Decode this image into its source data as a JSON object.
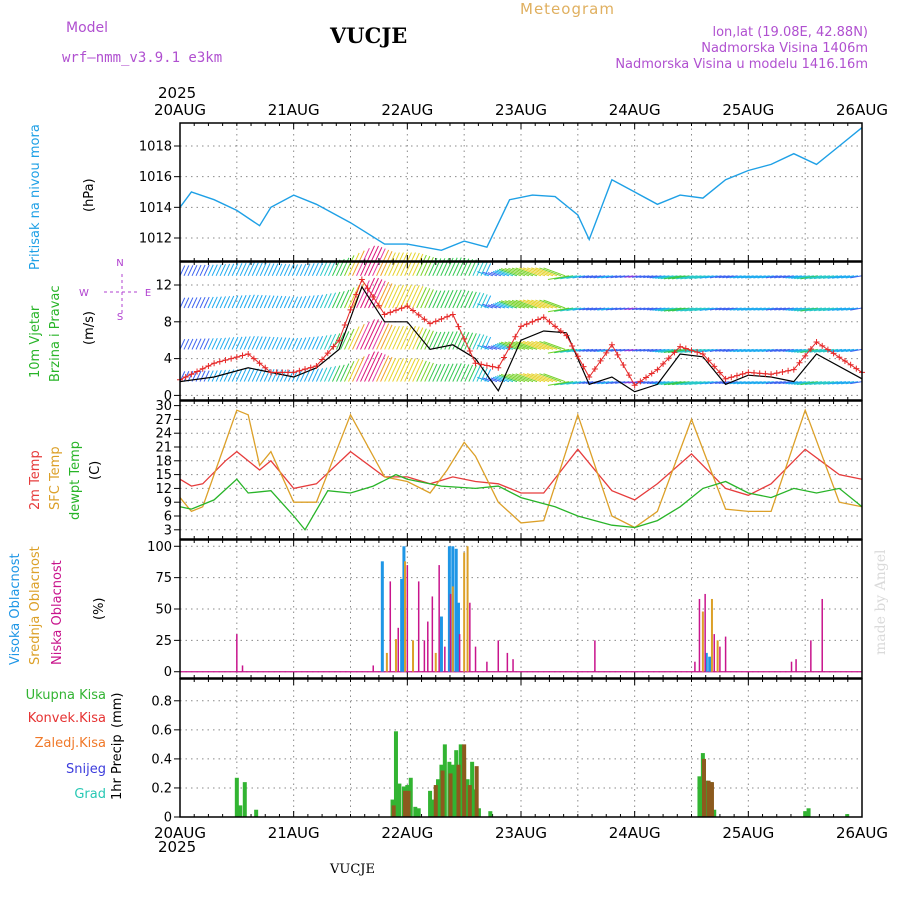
{
  "header": {
    "model_label": "Model",
    "model_name": "wrf—nmm_v3.9.1  e3km",
    "station_title": "VUCJE",
    "meteogram_label": "Meteogram",
    "lonlat": "lon,lat (19.08E, 42.88N)",
    "altitude": "Nadmorska Visina 1406m",
    "model_altitude": "Nadmorska Visina u modelu 1416.16m",
    "year_top": "2025",
    "year_bottom": "2025",
    "footer_station": "VUCJE",
    "watermark": "made by Angel"
  },
  "colors": {
    "pressure": "#1ea0e6",
    "wind_speed": "#000000",
    "gust": "#e62828",
    "t2m": "#e63c3c",
    "tsfc": "#dca028",
    "dewpt": "#28b428",
    "cloud_high": "#1e96e6",
    "cloud_mid": "#dca028",
    "cloud_low": "#c8148c",
    "precip_total": "#32b432",
    "precip_conv": "#e63232",
    "precip_frozen": "#f07828",
    "snow": "#3c3cdc",
    "hail": "#28c8b4"
  },
  "chart_data": [
    {
      "type": "line",
      "title": "Pritisak na nivou mora",
      "ylabel": "(hPa)",
      "ylim": [
        1010.5,
        1019.5
      ],
      "yticks": [
        "1012",
        "1014",
        "1016",
        "1018"
      ],
      "ytick_values": [
        1012,
        1014,
        1016,
        1018
      ],
      "x_days": [
        0,
        0.1,
        0.3,
        0.5,
        0.7,
        0.8,
        1.0,
        1.2,
        1.5,
        1.8,
        2.0,
        2.3,
        2.5,
        2.7,
        2.9,
        3.1,
        3.3,
        3.5,
        3.6,
        3.8,
        4.0,
        4.2,
        4.4,
        4.6,
        4.8,
        5.0,
        5.2,
        5.4,
        5.6,
        5.8,
        6.0
      ],
      "values": [
        1014,
        1015,
        1014.5,
        1013.8,
        1012.8,
        1014,
        1014.8,
        1014.2,
        1013,
        1011.6,
        1011.6,
        1011.2,
        1011.8,
        1011.4,
        1014.5,
        1014.8,
        1014.7,
        1013.5,
        1011.9,
        1015.8,
        1015,
        1014.2,
        1014.8,
        1014.6,
        1015.8,
        1016.4,
        1016.8,
        1017.5,
        1016.8,
        1018,
        1019.2
      ]
    },
    {
      "type": "line",
      "title": "10m Vjetar Brzina i Pravac",
      "ylabel": "(m/s)",
      "ylim": [
        -0.5,
        14.5
      ],
      "yticks": [
        "0",
        "4",
        "8",
        "12"
      ],
      "ytick_values": [
        0,
        4,
        8,
        12
      ],
      "legend_compass": [
        "N",
        "S",
        "E",
        "W"
      ],
      "series": [
        {
          "name": "wind speed",
          "x_days": [
            0,
            0.3,
            0.6,
            0.8,
            1.0,
            1.2,
            1.4,
            1.6,
            1.8,
            2.0,
            2.2,
            2.4,
            2.6,
            2.8,
            3.0,
            3.2,
            3.4,
            3.6,
            3.8,
            4.0,
            4.2,
            4.4,
            4.6,
            4.8,
            5.0,
            5.2,
            5.4,
            5.6,
            6.0
          ],
          "values": [
            1.5,
            2,
            3,
            2.5,
            2,
            3,
            5,
            11.8,
            8,
            8,
            5,
            5.5,
            4,
            0.5,
            6,
            7,
            6.8,
            1.2,
            2,
            0.4,
            1.2,
            4.5,
            4.2,
            1.2,
            2.2,
            2,
            1.5,
            4.5,
            1.8
          ]
        },
        {
          "name": "gust",
          "x_days": [
            0,
            0.3,
            0.6,
            0.8,
            1.0,
            1.2,
            1.4,
            1.6,
            1.8,
            2.0,
            2.2,
            2.4,
            2.6,
            2.8,
            3.0,
            3.2,
            3.4,
            3.6,
            3.8,
            4.0,
            4.2,
            4.4,
            4.6,
            4.8,
            5.0,
            5.2,
            5.4,
            5.6,
            6.0
          ],
          "values": [
            1.7,
            3.5,
            4.5,
            2.5,
            2.5,
            3.2,
            6,
            12.6,
            8.8,
            9.7,
            7.8,
            8.8,
            3.5,
            3,
            7.5,
            8.5,
            6.5,
            2,
            5.5,
            1.1,
            2.8,
            5.3,
            4.5,
            1.8,
            2.5,
            2.3,
            2.8,
            5.8,
            2.5
          ]
        }
      ]
    },
    {
      "type": "line",
      "title": "2m Temp / SFC Temp / dewpt Temp",
      "ylabel": "(C)",
      "ylim": [
        1,
        31
      ],
      "yticks": [
        "3",
        "6",
        "9",
        "12",
        "15",
        "18",
        "21",
        "24",
        "27",
        "30"
      ],
      "ytick_values": [
        3,
        6,
        9,
        12,
        15,
        18,
        21,
        24,
        27,
        30
      ],
      "series": [
        {
          "name": "2m Temp",
          "x_days": [
            0,
            0.1,
            0.2,
            0.4,
            0.5,
            0.7,
            0.8,
            1.0,
            1.2,
            1.5,
            1.8,
            2.0,
            2.2,
            2.4,
            2.6,
            2.8,
            3.0,
            3.2,
            3.5,
            3.8,
            4.0,
            4.2,
            4.5,
            4.8,
            5.0,
            5.2,
            5.5,
            5.8,
            6.0
          ],
          "values": [
            14,
            12.5,
            13,
            18,
            20,
            16,
            18,
            12,
            13,
            20,
            14.5,
            14.5,
            13,
            14.5,
            13.5,
            13,
            11,
            11,
            20.5,
            11.5,
            9.5,
            13,
            19.5,
            12,
            10.5,
            13,
            20.5,
            15,
            14
          ]
        },
        {
          "name": "SFC Temp",
          "x_days": [
            0,
            0.1,
            0.2,
            0.4,
            0.5,
            0.6,
            0.7,
            0.8,
            1.0,
            1.2,
            1.5,
            1.8,
            2.0,
            2.2,
            2.35,
            2.5,
            2.6,
            2.8,
            3.0,
            3.2,
            3.5,
            3.8,
            4.0,
            4.2,
            4.5,
            4.8,
            5.0,
            5.2,
            5.5,
            5.8,
            6.0
          ],
          "values": [
            10,
            7,
            8,
            22,
            29,
            28,
            17,
            20,
            9,
            9,
            28,
            14.5,
            13.5,
            11,
            16,
            22,
            19,
            9,
            4.5,
            5,
            28,
            6,
            3.5,
            7,
            27,
            7.5,
            7,
            7,
            29,
            9,
            8
          ]
        },
        {
          "name": "dewpt Temp",
          "x_days": [
            0,
            0.1,
            0.3,
            0.5,
            0.6,
            0.8,
            1.0,
            1.1,
            1.3,
            1.5,
            1.7,
            1.9,
            2.0,
            2.3,
            2.6,
            2.8,
            3.0,
            3.3,
            3.5,
            3.8,
            4.0,
            4.2,
            4.4,
            4.6,
            4.8,
            5.0,
            5.2,
            5.4,
            5.6,
            5.8,
            6.0
          ],
          "values": [
            8,
            7.5,
            9.5,
            14,
            11,
            11.5,
            6,
            3,
            11.5,
            11,
            12.5,
            15,
            14,
            12.5,
            12,
            12.5,
            10,
            8,
            6,
            4,
            3.5,
            5,
            8,
            12,
            13.5,
            11,
            10,
            12,
            11,
            12,
            8
          ]
        }
      ]
    },
    {
      "type": "bar",
      "title": "Visoka / Srednja / Niska Oblacnost",
      "ylabel": "(%)",
      "ylim": [
        -5,
        105
      ],
      "yticks": [
        "0",
        "25",
        "50",
        "75",
        "100"
      ],
      "ytick_values": [
        0,
        25,
        50,
        75,
        100
      ],
      "series": [
        {
          "name": "Visoka Oblacnost",
          "x_days": [
            1.78,
            1.95,
            1.97,
            2.3,
            2.37,
            2.4,
            2.43,
            2.45,
            4.63,
            4.66
          ],
          "values": [
            88,
            74,
            100,
            44,
            100,
            100,
            98,
            55,
            15,
            12
          ]
        },
        {
          "name": "Srednja Oblacnost",
          "x_days": [
            1.82,
            1.9,
            1.98,
            2.05,
            2.25,
            2.4,
            2.5,
            2.53,
            4.6,
            4.68,
            4.73
          ],
          "values": [
            15,
            26,
            88,
            25,
            15,
            68,
            95,
            100,
            48,
            58,
            25
          ]
        },
        {
          "name": "Niska Oblacnost",
          "x_days": [
            0.5,
            0.55,
            1.7,
            1.85,
            1.92,
            2.0,
            2.1,
            2.15,
            2.18,
            2.22,
            2.28,
            2.33,
            2.38,
            2.46,
            2.55,
            2.6,
            2.7,
            2.8,
            2.88,
            2.93,
            3.65,
            4.53,
            4.57,
            4.62,
            4.7,
            4.75,
            4.8,
            5.38,
            5.42,
            5.55,
            5.65
          ],
          "values": [
            30,
            5,
            5,
            72,
            35,
            85,
            72,
            25,
            40,
            60,
            85,
            20,
            62,
            30,
            55,
            20,
            8,
            25,
            15,
            10,
            25,
            8,
            58,
            62,
            30,
            20,
            28,
            8,
            10,
            25,
            58
          ]
        }
      ]
    },
    {
      "type": "bar",
      "title": "1hr Precip",
      "ylabel": "(mm)",
      "ylim": [
        0,
        0.95
      ],
      "yticks": [
        "0",
        "0.2",
        "0.4",
        "0.6",
        "0.8"
      ],
      "ytick_values": [
        0,
        0.2,
        0.4,
        0.6,
        0.8
      ],
      "legend": [
        "Ukupna Kisa",
        "Konvek.Kisa",
        "Zaledj.Kisa",
        "Snijeg",
        "Grad"
      ],
      "series": [
        {
          "name": "Ukupna Kisa",
          "x_days": [
            0.5,
            0.53,
            0.57,
            0.67,
            1.87,
            1.9,
            1.93,
            1.97,
            2.0,
            2.03,
            2.07,
            2.1,
            2.2,
            2.23,
            2.27,
            2.3,
            2.33,
            2.37,
            2.4,
            2.43,
            2.47,
            2.5,
            2.53,
            2.57,
            2.6,
            2.63,
            2.73,
            4.57,
            4.6,
            4.63,
            4.67,
            4.7,
            5.5,
            5.53,
            5.87
          ],
          "values": [
            0.27,
            0.08,
            0.24,
            0.05,
            0.12,
            0.59,
            0.23,
            0.21,
            0.22,
            0.27,
            0.07,
            0.06,
            0.18,
            0.12,
            0.26,
            0.36,
            0.5,
            0.38,
            0.36,
            0.46,
            0.5,
            0.39,
            0.26,
            0.38,
            0.19,
            0.06,
            0.04,
            0.28,
            0.44,
            0.25,
            0.24,
            0.05,
            0.04,
            0.06,
            0.02
          ]
        },
        {
          "name": "Konvek.Kisa",
          "x_days": [
            1.88,
            1.98,
            2.01,
            2.25,
            2.31,
            2.38,
            2.45,
            2.5,
            2.55,
            2.61,
            4.61,
            4.65,
            4.68
          ],
          "values": [
            0.08,
            0.18,
            0.18,
            0.22,
            0.32,
            0.3,
            0.36,
            0.5,
            0.22,
            0.35,
            0.4,
            0.25,
            0.24
          ]
        }
      ]
    }
  ],
  "panel_labels": {
    "p1": [
      "Pritisak na nivou mora"
    ],
    "p2": [
      "10m Vjetar",
      "Brzina i Pravac"
    ],
    "p3": [
      "2m Temp",
      "SFC Temp",
      "dewpt Temp"
    ],
    "p4": [
      "Visoka Oblacnost",
      "Srednja Oblacnost",
      "Niska Oblacnost"
    ],
    "p5": [
      "Ukupna Kisa",
      "Konvek.Kisa",
      "Zaledj.Kisa",
      "Snijeg",
      "Grad"
    ]
  },
  "x_axis": {
    "labels": [
      "20AUG",
      "21AUG",
      "22AUG",
      "23AUG",
      "24AUG",
      "25AUG",
      "26AUG"
    ],
    "days": [
      0,
      1,
      2,
      3,
      4,
      5,
      6
    ]
  }
}
